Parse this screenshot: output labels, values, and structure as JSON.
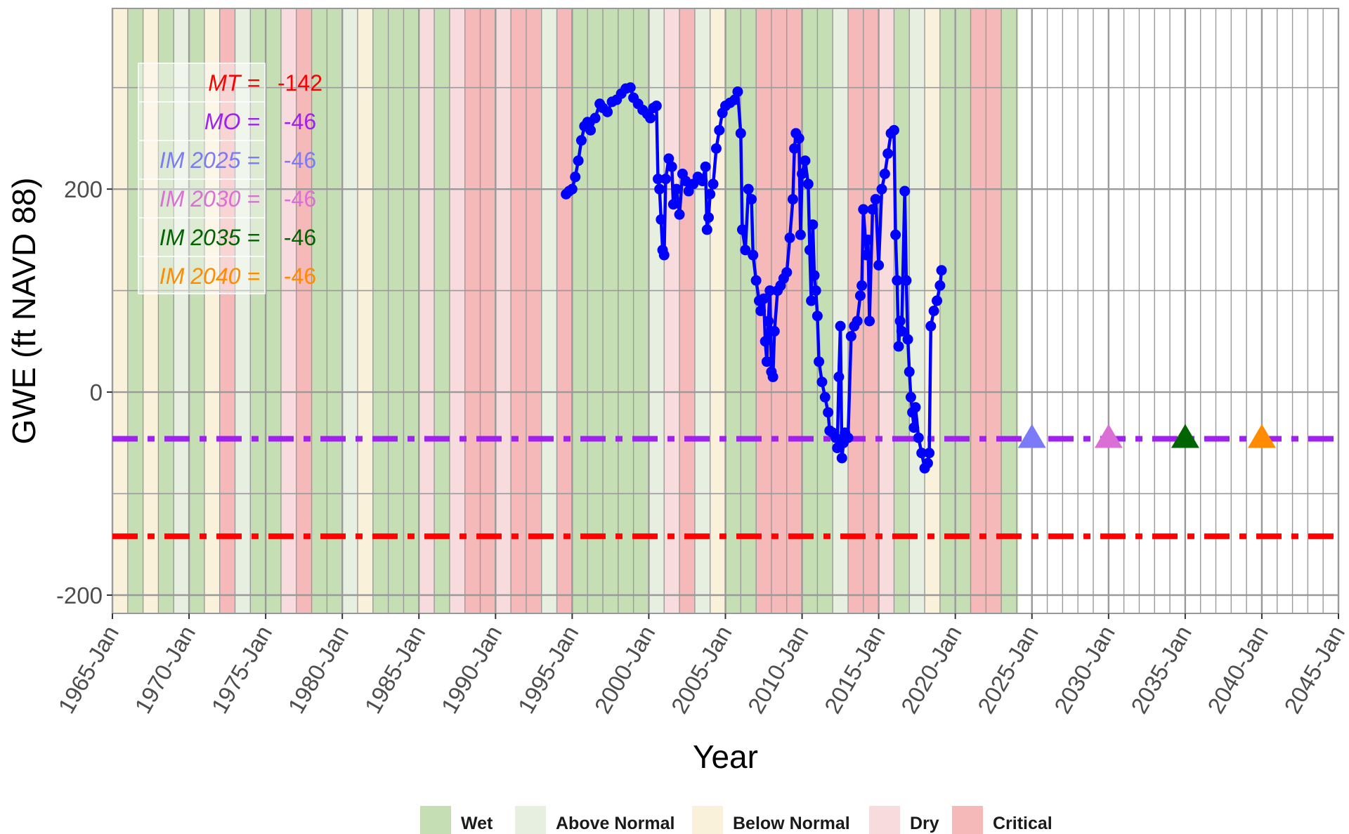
{
  "chart_data": {
    "type": "line",
    "xlabel": "Year",
    "ylabel": "GWE (ft NAVD 88)",
    "xlim": [
      1965,
      2045
    ],
    "ylim": [
      -218,
      378
    ],
    "x_ticks": [
      {
        "value": 1965,
        "label": "1965-Jan"
      },
      {
        "value": 1970,
        "label": "1970-Jan"
      },
      {
        "value": 1975,
        "label": "1975-Jan"
      },
      {
        "value": 1980,
        "label": "1980-Jan"
      },
      {
        "value": 1985,
        "label": "1985-Jan"
      },
      {
        "value": 1990,
        "label": "1990-Jan"
      },
      {
        "value": 1995,
        "label": "1995-Jan"
      },
      {
        "value": 2000,
        "label": "2000-Jan"
      },
      {
        "value": 2005,
        "label": "2005-Jan"
      },
      {
        "value": 2010,
        "label": "2010-Jan"
      },
      {
        "value": 2015,
        "label": "2015-Jan"
      },
      {
        "value": 2020,
        "label": "2020-Jan"
      },
      {
        "value": 2025,
        "label": "2025-Jan"
      },
      {
        "value": 2030,
        "label": "2030-Jan"
      },
      {
        "value": 2035,
        "label": "2035-Jan"
      },
      {
        "value": 2040,
        "label": "2040-Jan"
      },
      {
        "value": 2045,
        "label": "2045-Jan"
      }
    ],
    "y_ticks": [
      {
        "value": -200,
        "label": "-200"
      },
      {
        "value": 0,
        "label": "0"
      },
      {
        "value": 200,
        "label": "200"
      }
    ],
    "grid": true,
    "background_categories": [
      {
        "name": "Wet",
        "color": "#c5deb4"
      },
      {
        "name": "Above Normal",
        "color": "#e7f0e0"
      },
      {
        "name": "Below Normal",
        "color": "#faf1da"
      },
      {
        "name": "Dry",
        "color": "#f8dcdd"
      },
      {
        "name": "Critical",
        "color": "#f4b9b8"
      }
    ],
    "water_year_types": [
      {
        "start": 1965,
        "end": 1966,
        "type": "Below Normal"
      },
      {
        "start": 1966,
        "end": 1967,
        "type": "Wet"
      },
      {
        "start": 1967,
        "end": 1968,
        "type": "Below Normal"
      },
      {
        "start": 1968,
        "end": 1969,
        "type": "Wet"
      },
      {
        "start": 1969,
        "end": 1970,
        "type": "Above Normal"
      },
      {
        "start": 1970,
        "end": 1971,
        "type": "Wet"
      },
      {
        "start": 1971,
        "end": 1972,
        "type": "Below Normal"
      },
      {
        "start": 1972,
        "end": 1973,
        "type": "Critical"
      },
      {
        "start": 1973,
        "end": 1974,
        "type": "Above Normal"
      },
      {
        "start": 1974,
        "end": 1976,
        "type": "Wet"
      },
      {
        "start": 1976,
        "end": 1977,
        "type": "Dry"
      },
      {
        "start": 1977,
        "end": 1978,
        "type": "Critical"
      },
      {
        "start": 1978,
        "end": 1980,
        "type": "Wet"
      },
      {
        "start": 1980,
        "end": 1981,
        "type": "Above Normal"
      },
      {
        "start": 1981,
        "end": 1982,
        "type": "Below Normal"
      },
      {
        "start": 1982,
        "end": 1985,
        "type": "Wet"
      },
      {
        "start": 1985,
        "end": 1986,
        "type": "Dry"
      },
      {
        "start": 1986,
        "end": 1987,
        "type": "Wet"
      },
      {
        "start": 1987,
        "end": 1988,
        "type": "Dry"
      },
      {
        "start": 1988,
        "end": 1990,
        "type": "Critical"
      },
      {
        "start": 1990,
        "end": 1991,
        "type": "Dry"
      },
      {
        "start": 1991,
        "end": 1993,
        "type": "Critical"
      },
      {
        "start": 1993,
        "end": 1994,
        "type": "Above Normal"
      },
      {
        "start": 1994,
        "end": 1995,
        "type": "Critical"
      },
      {
        "start": 1995,
        "end": 2000,
        "type": "Wet"
      },
      {
        "start": 2000,
        "end": 2001,
        "type": "Above Normal"
      },
      {
        "start": 2001,
        "end": 2002,
        "type": "Dry"
      },
      {
        "start": 2002,
        "end": 2003,
        "type": "Critical"
      },
      {
        "start": 2003,
        "end": 2004,
        "type": "Above Normal"
      },
      {
        "start": 2004,
        "end": 2005,
        "type": "Below Normal"
      },
      {
        "start": 2005,
        "end": 2007,
        "type": "Wet"
      },
      {
        "start": 2007,
        "end": 2010,
        "type": "Critical"
      },
      {
        "start": 2010,
        "end": 2012,
        "type": "Wet"
      },
      {
        "start": 2012,
        "end": 2013,
        "type": "Above Normal"
      },
      {
        "start": 2013,
        "end": 2015,
        "type": "Critical"
      },
      {
        "start": 2015,
        "end": 2016,
        "type": "Dry"
      },
      {
        "start": 2016,
        "end": 2017,
        "type": "Wet"
      },
      {
        "start": 2017,
        "end": 2018,
        "type": "Above Normal"
      },
      {
        "start": 2018,
        "end": 2019,
        "type": "Below Normal"
      },
      {
        "start": 2019,
        "end": 2021,
        "type": "Wet"
      },
      {
        "start": 2021,
        "end": 2023,
        "type": "Critical"
      },
      {
        "start": 2023,
        "end": 2024.1,
        "type": "Wet"
      }
    ],
    "thresholds": [
      {
        "label": "MT =",
        "value_text": "-142",
        "value": -142,
        "color": "#ff0000",
        "line": true
      },
      {
        "label": "MO =",
        "value_text": "-46",
        "value": -46,
        "color": "#a020f0",
        "line": true
      },
      {
        "label": "IM 2025 =",
        "value_text": "-46",
        "value": -46,
        "color": "#7b7bf7",
        "line": false
      },
      {
        "label": "IM 2030 =",
        "value_text": "-46",
        "value": -46,
        "color": "#da70d6",
        "line": false
      },
      {
        "label": "IM 2035 =",
        "value_text": "-46",
        "value": -46,
        "color": "#006400",
        "line": false
      },
      {
        "label": "IM 2040 =",
        "value_text": "-46",
        "value": -46,
        "color": "#ff8c00",
        "line": false
      }
    ],
    "interim_milestones": [
      {
        "x": 2025,
        "y": -46,
        "color": "#7b7bf7"
      },
      {
        "x": 2030,
        "y": -46,
        "color": "#da70d6"
      },
      {
        "x": 2035,
        "y": -46,
        "color": "#006400"
      },
      {
        "x": 2040,
        "y": -46,
        "color": "#ff8c00"
      }
    ],
    "series": [
      {
        "color": "#0000ff",
        "points": [
          [
            1994.6,
            195
          ],
          [
            1994.8,
            198
          ],
          [
            1995.0,
            200
          ],
          [
            1995.2,
            212
          ],
          [
            1995.4,
            228
          ],
          [
            1995.6,
            248
          ],
          [
            1995.8,
            262
          ],
          [
            1996.0,
            266
          ],
          [
            1996.2,
            258
          ],
          [
            1996.5,
            270
          ],
          [
            1996.8,
            284
          ],
          [
            1997.0,
            280
          ],
          [
            1997.3,
            276
          ],
          [
            1997.6,
            286
          ],
          [
            1997.9,
            288
          ],
          [
            1998.2,
            294
          ],
          [
            1998.5,
            299
          ],
          [
            1998.8,
            300
          ],
          [
            1999.0,
            290
          ],
          [
            1999.3,
            284
          ],
          [
            1999.6,
            278
          ],
          [
            1999.9,
            274
          ],
          [
            2000.1,
            270
          ],
          [
            2000.3,
            280
          ],
          [
            2000.5,
            282
          ],
          [
            2000.6,
            210
          ],
          [
            2000.7,
            200
          ],
          [
            2000.8,
            170
          ],
          [
            2000.9,
            140
          ],
          [
            2001.0,
            135
          ],
          [
            2001.1,
            210
          ],
          [
            2001.3,
            230
          ],
          [
            2001.5,
            222
          ],
          [
            2001.6,
            185
          ],
          [
            2001.8,
            200
          ],
          [
            2002.0,
            175
          ],
          [
            2002.2,
            215
          ],
          [
            2002.4,
            208
          ],
          [
            2002.6,
            198
          ],
          [
            2002.9,
            205
          ],
          [
            2003.2,
            212
          ],
          [
            2003.5,
            208
          ],
          [
            2003.7,
            222
          ],
          [
            2003.8,
            160
          ],
          [
            2003.9,
            172
          ],
          [
            2004.0,
            195
          ],
          [
            2004.2,
            205
          ],
          [
            2004.4,
            240
          ],
          [
            2004.6,
            258
          ],
          [
            2004.8,
            275
          ],
          [
            2005.0,
            282
          ],
          [
            2005.3,
            285
          ],
          [
            2005.6,
            288
          ],
          [
            2005.8,
            296
          ],
          [
            2006.0,
            255
          ],
          [
            2006.1,
            160
          ],
          [
            2006.3,
            140
          ],
          [
            2006.5,
            200
          ],
          [
            2006.7,
            190
          ],
          [
            2006.8,
            135
          ],
          [
            2007.0,
            110
          ],
          [
            2007.2,
            90
          ],
          [
            2007.3,
            80
          ],
          [
            2007.5,
            92
          ],
          [
            2007.6,
            50
          ],
          [
            2007.7,
            30
          ],
          [
            2007.8,
            70
          ],
          [
            2007.9,
            100
          ],
          [
            2008.0,
            20
          ],
          [
            2008.1,
            15
          ],
          [
            2008.2,
            60
          ],
          [
            2008.4,
            100
          ],
          [
            2008.6,
            105
          ],
          [
            2008.8,
            112
          ],
          [
            2009.0,
            118
          ],
          [
            2009.2,
            152
          ],
          [
            2009.4,
            190
          ],
          [
            2009.5,
            240
          ],
          [
            2009.6,
            255
          ],
          [
            2009.8,
            250
          ],
          [
            2009.9,
            155
          ],
          [
            2010.0,
            215
          ],
          [
            2010.2,
            228
          ],
          [
            2010.4,
            205
          ],
          [
            2010.5,
            140
          ],
          [
            2010.6,
            90
          ],
          [
            2010.7,
            165
          ],
          [
            2010.8,
            115
          ],
          [
            2010.9,
            100
          ],
          [
            2011.0,
            75
          ],
          [
            2011.1,
            30
          ],
          [
            2011.3,
            10
          ],
          [
            2011.5,
            -5
          ],
          [
            2011.7,
            -20
          ],
          [
            2011.8,
            -38
          ],
          [
            2012.0,
            -40
          ],
          [
            2012.2,
            -45
          ],
          [
            2012.3,
            -55
          ],
          [
            2012.4,
            15
          ],
          [
            2012.5,
            65
          ],
          [
            2012.6,
            -65
          ],
          [
            2012.7,
            -50
          ],
          [
            2012.8,
            -40
          ],
          [
            2013.0,
            -45
          ],
          [
            2013.2,
            55
          ],
          [
            2013.4,
            65
          ],
          [
            2013.6,
            70
          ],
          [
            2013.8,
            95
          ],
          [
            2013.9,
            105
          ],
          [
            2014.0,
            180
          ],
          [
            2014.2,
            135
          ],
          [
            2014.3,
            150
          ],
          [
            2014.4,
            70
          ],
          [
            2014.6,
            180
          ],
          [
            2014.8,
            190
          ],
          [
            2015.0,
            125
          ],
          [
            2015.2,
            200
          ],
          [
            2015.4,
            215
          ],
          [
            2015.6,
            235
          ],
          [
            2015.8,
            255
          ],
          [
            2016.0,
            258
          ],
          [
            2016.1,
            155
          ],
          [
            2016.2,
            110
          ],
          [
            2016.3,
            45
          ],
          [
            2016.4,
            70
          ],
          [
            2016.5,
            60
          ],
          [
            2016.7,
            198
          ],
          [
            2016.8,
            110
          ],
          [
            2016.9,
            52
          ],
          [
            2017.0,
            20
          ],
          [
            2017.1,
            -5
          ],
          [
            2017.2,
            -20
          ],
          [
            2017.3,
            -35
          ],
          [
            2017.4,
            -15
          ],
          [
            2017.6,
            -45
          ],
          [
            2017.8,
            -60
          ],
          [
            2018.0,
            -75
          ],
          [
            2018.2,
            -70
          ],
          [
            2018.3,
            -60
          ],
          [
            2018.4,
            65
          ],
          [
            2018.6,
            80
          ],
          [
            2018.8,
            90
          ],
          [
            2019.0,
            105
          ],
          [
            2019.1,
            120
          ]
        ]
      }
    ]
  },
  "legend": {
    "items": [
      {
        "label": "Wet",
        "color": "#c5deb4"
      },
      {
        "label": "Above Normal",
        "color": "#e7f0e0"
      },
      {
        "label": "Below Normal",
        "color": "#faf1da"
      },
      {
        "label": "Dry",
        "color": "#f8dcdd"
      },
      {
        "label": "Critical",
        "color": "#f4b9b8"
      }
    ]
  }
}
